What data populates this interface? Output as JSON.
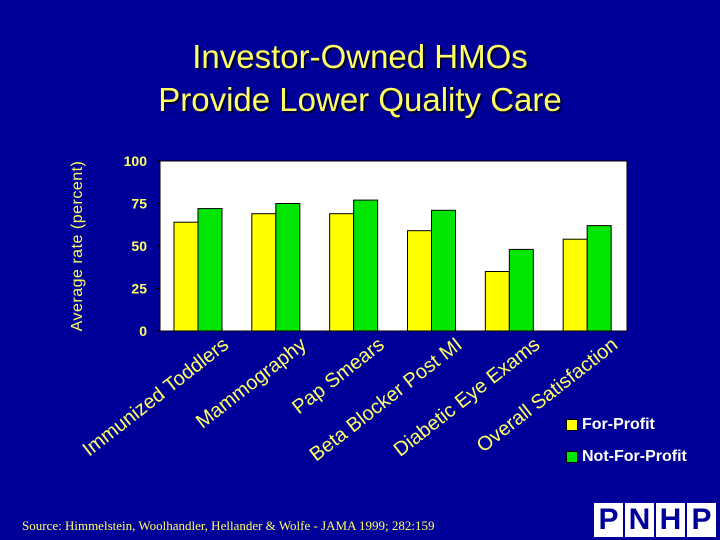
{
  "chart_data": {
    "type": "bar",
    "title": [
      "Investor-Owned HMOs",
      "Provide Lower Quality Care"
    ],
    "ylabel": "Average rate (percent)",
    "xlabel": "",
    "ylim": [
      0,
      100
    ],
    "yticks": [
      0,
      25,
      50,
      75,
      100
    ],
    "categories": [
      "Immunized Toddlers",
      "Mammography",
      "Pap Smears",
      "Beta Blocker Post MI",
      "Diabetic Eye Exams",
      "Overall Satisfaction"
    ],
    "series": [
      {
        "name": "For-Profit",
        "color": "#ffff00",
        "values": [
          64,
          69,
          69,
          59,
          35,
          54
        ]
      },
      {
        "name": "Not-For-Profit",
        "color": "#00e600",
        "values": [
          72,
          75,
          77,
          71,
          48,
          62
        ]
      }
    ],
    "grid": false,
    "legend": "bottom-right",
    "plot_background": "#ffffff"
  },
  "source": "Source: Himmelstein, Woolhandler, Hellander & Wolfe - JAMA 1999; 282:159",
  "logo": [
    "P",
    "N",
    "H",
    "P"
  ]
}
